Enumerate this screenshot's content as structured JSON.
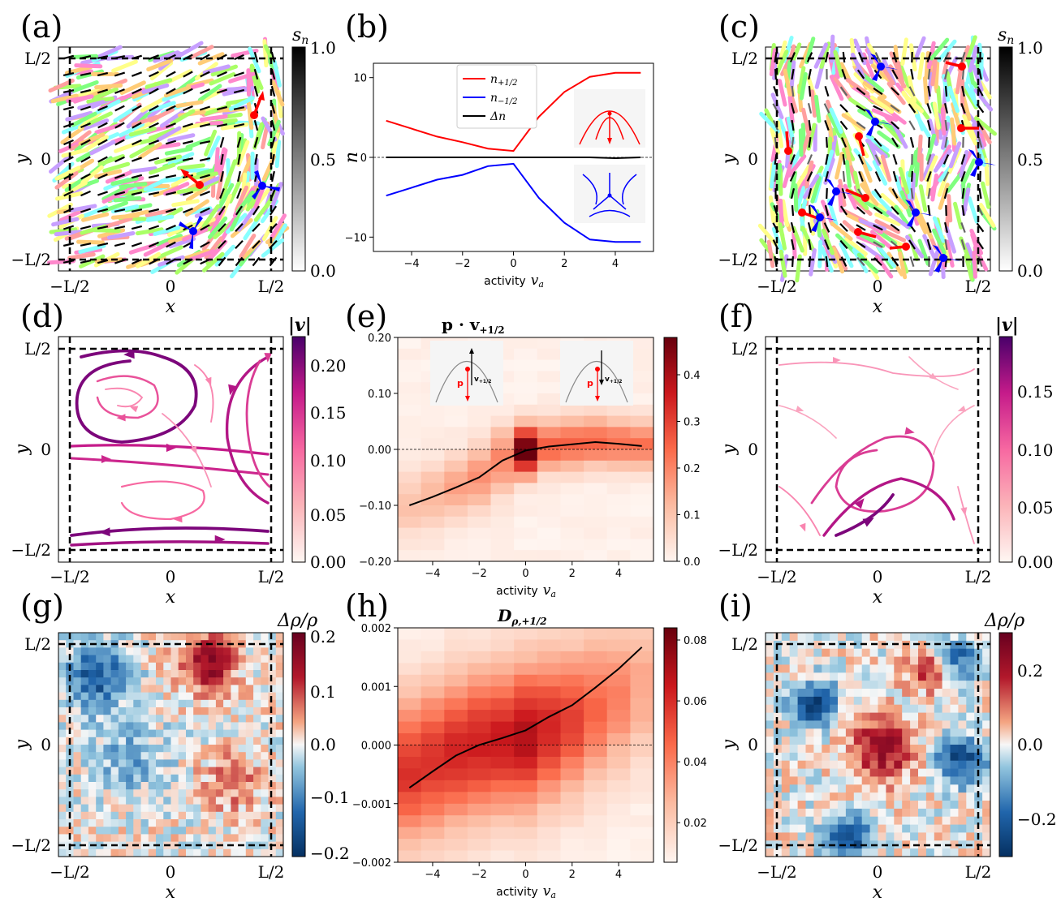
{
  "panel_letters": [
    "(a)",
    "(b)",
    "(c)",
    "(d)",
    "(e)",
    "(f)",
    "(g)",
    "(h)",
    "(i)"
  ],
  "colors": {
    "plus": "#ff0000",
    "minus": "#0000ff",
    "line": "#000000",
    "streams": "#8b0a6e",
    "heat": "#b2182b",
    "cool": "#2166ac"
  },
  "axis_text": {
    "x": "x",
    "y": "y",
    "xticks": [
      "−L/2",
      "0",
      "L/2"
    ],
    "yticks": [
      "L/2",
      "0",
      "−L/2"
    ],
    "activity": "activity",
    "va": "v",
    "va_sub": "a"
  },
  "colorbars": {
    "a": {
      "label": "s",
      "label_sub": "n",
      "ticks": [
        "1.0",
        "0.5",
        "0.0"
      ]
    },
    "c": {
      "label": "s",
      "label_sub": "n",
      "ticks": [
        "1.0",
        "0.5",
        "0.0"
      ]
    },
    "d": {
      "label": "|v|",
      "ticks": [
        "0.20",
        "0.15",
        "0.10",
        "0.05",
        "0.00"
      ]
    },
    "f": {
      "label": "|v|",
      "ticks": [
        "0.15",
        "0.10",
        "0.05",
        "0.00"
      ]
    },
    "e": {
      "ticks": [
        "0.4",
        "0.3",
        "0.2",
        "0.1",
        "0.0"
      ]
    },
    "g": {
      "label": "Δρ/ρ",
      "ticks": [
        "0.2",
        "0.1",
        "0.0",
        "−0.1",
        "−0.2"
      ]
    },
    "i": {
      "label": "Δρ/ρ",
      "ticks": [
        "0.2",
        "0.0",
        "−0.2"
      ]
    },
    "h": {
      "ticks": [
        "0.08",
        "0.06",
        "0.04",
        "0.02"
      ]
    }
  },
  "chart_data": [
    {
      "panel": "b",
      "type": "line",
      "xlabel": "activity v_a",
      "ylabel": "n",
      "x": [
        -5,
        -4,
        -3,
        -2,
        -1,
        0,
        1,
        2,
        3,
        4,
        5
      ],
      "xticks": [
        "−4",
        "−2",
        "0",
        "2",
        "4"
      ],
      "yticks": [
        "10",
        "0",
        "−10"
      ],
      "xlim": [
        -5.5,
        5.5
      ],
      "ylim": [
        -11.8,
        11.8
      ],
      "series": [
        {
          "name": "n+1/2",
          "label": "n",
          "sub": "+1/2",
          "color": "#ff0000",
          "values": [
            4.6,
            3.6,
            2.6,
            1.9,
            1.1,
            0.8,
            5.1,
            8.2,
            10.1,
            10.6,
            10.6
          ]
        },
        {
          "name": "n−1/2",
          "label": "n",
          "sub": "−1/2",
          "color": "#0000ff",
          "values": [
            -4.8,
            -3.8,
            -2.8,
            -2.2,
            -1.1,
            -0.8,
            -5.1,
            -8.2,
            -10.3,
            -10.6,
            -10.6
          ]
        },
        {
          "name": "Δn",
          "label": "Δn",
          "sub": "",
          "color": "#000000",
          "values": [
            0,
            0,
            0,
            0,
            0,
            0,
            0,
            0,
            0,
            -0.1,
            0
          ]
        }
      ]
    },
    {
      "panel": "e",
      "type": "heatmap",
      "title": "p · v+1/2",
      "title_main": "p · v",
      "title_sub": "+1/2",
      "xlabel": "activity v_a",
      "xticks": [
        "−4",
        "−2",
        "0",
        "2",
        "4"
      ],
      "yticks": [
        "0.20",
        "0.10",
        "0.00",
        "−0.10",
        "−0.20"
      ],
      "xlim": [
        -5.5,
        5.5
      ],
      "ylim": [
        -0.2,
        0.2
      ],
      "colorbar_range": [
        0,
        0.48
      ],
      "line_x": [
        -5,
        -4,
        -3,
        -2,
        -1,
        0,
        1,
        2,
        3,
        4,
        5
      ],
      "line_y": [
        -0.1,
        -0.085,
        -0.068,
        -0.05,
        -0.02,
        -0.002,
        0.005,
        0.009,
        0.013,
        0.01,
        0.006
      ],
      "inset_labels": {
        "p": "p",
        "v": "v",
        "v_sub": "+1/2"
      }
    },
    {
      "panel": "h",
      "type": "heatmap",
      "title": "Dρ,+1/2",
      "title_main": "D",
      "title_sub": "ρ,+1/2",
      "xlabel": "activity v_a",
      "xticks": [
        "−4",
        "−2",
        "0",
        "2",
        "4"
      ],
      "yticks": [
        "0.002",
        "0.001",
        "0.000",
        "−0.001",
        "−0.002"
      ],
      "xlim": [
        -5.5,
        5.5
      ],
      "ylim": [
        -0.002,
        0.002
      ],
      "colorbar_range": [
        0.007,
        0.084
      ],
      "line_x": [
        -5,
        -4,
        -3,
        -2,
        -1,
        0,
        1,
        2,
        3,
        4,
        5
      ],
      "line_y": [
        -0.00073,
        -0.00045,
        -0.00018,
        0.0,
        0.00012,
        0.00025,
        0.00048,
        0.00068,
        0.00098,
        0.0013,
        0.00167
      ]
    }
  ]
}
